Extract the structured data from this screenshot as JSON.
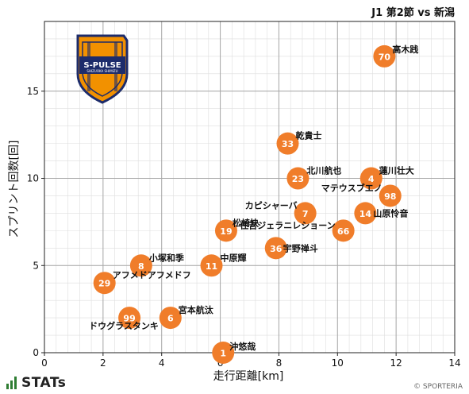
{
  "header": {
    "match_title": "J1 第2節 vs 新潟"
  },
  "footer": {
    "brand": "STATs",
    "credit": "© SPORTERIA"
  },
  "logo": {
    "text_main": "S-PULSE",
    "text_sub": "SHIZUOKA SHIMIZU"
  },
  "colors": {
    "point": "#f07d2a",
    "grid_major": "#a6a6a6",
    "grid_minor": "#dedede",
    "logo_orange": "#f29100",
    "logo_navy": "#1d2c6b"
  },
  "chart_data": {
    "type": "scatter",
    "title": "J1 第2節 vs 新潟",
    "xlabel": "走行距離[km]",
    "ylabel": "スプリント回数[回]",
    "xlim": [
      0,
      14
    ],
    "ylim": [
      0,
      19
    ],
    "xticks": [
      0,
      2,
      4,
      6,
      8,
      10,
      12,
      14
    ],
    "yticks": [
      0,
      5,
      10,
      15
    ],
    "grid": true,
    "points": [
      {
        "number": "70",
        "name": "高木践",
        "x": 11.6,
        "y": 17
      },
      {
        "number": "33",
        "name": "乾貴士",
        "x": 8.3,
        "y": 12
      },
      {
        "number": "23",
        "name": "北川航也",
        "x": 8.65,
        "y": 10
      },
      {
        "number": "4",
        "name": "蓮川壮大",
        "x": 11.15,
        "y": 10
      },
      {
        "number": "98",
        "name": "マテウスブエノ",
        "x": 11.8,
        "y": 9
      },
      {
        "number": "7",
        "name": "カピシャーバ",
        "x": 8.9,
        "y": 8
      },
      {
        "number": "14",
        "name": "山原怜音",
        "x": 10.95,
        "y": 8
      },
      {
        "number": "19",
        "name": "松崎快",
        "x": 6.2,
        "y": 7
      },
      {
        "number": "66",
        "name": "住吉ジェラニレショーン",
        "x": 10.2,
        "y": 7
      },
      {
        "number": "36",
        "name": "宇野禅斗",
        "x": 7.9,
        "y": 6
      },
      {
        "number": "8",
        "name": "小塚和季",
        "x": 3.3,
        "y": 5
      },
      {
        "number": "11",
        "name": "中原輝",
        "x": 5.7,
        "y": 5
      },
      {
        "number": "29",
        "name": "アフメドアフメドフ",
        "x": 2.05,
        "y": 4
      },
      {
        "number": "99",
        "name": "ドウグラスタンキ",
        "x": 2.9,
        "y": 2
      },
      {
        "number": "6",
        "name": "宮本航汰",
        "x": 4.3,
        "y": 2
      },
      {
        "number": "1",
        "name": "沖悠哉",
        "x": 6.1,
        "y": 0
      }
    ]
  }
}
